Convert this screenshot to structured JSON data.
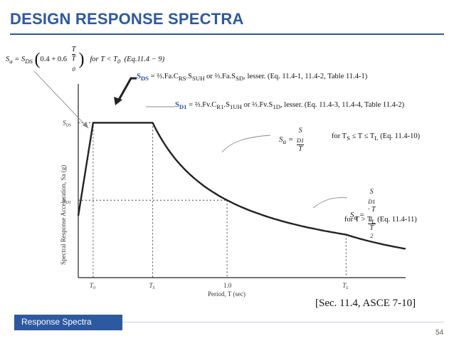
{
  "slide": {
    "title": "DESIGN RESPONSE SPECTRA",
    "footer_label": "Response Spectra",
    "page_number": "54",
    "citation": "[Sec. 11.4, ASCE 7-10]",
    "accent_color": "#2d59a0"
  },
  "equations": {
    "ramp": {
      "lhs": "S",
      "lhs_sub": "a",
      "eq_sign": " = S",
      "eq_sub": "DS",
      "inner_pre": "0.4 + 0.6",
      "frac_num": "T",
      "frac_den": "T",
      "frac_den_sub": "0",
      "condition": "for  T < T",
      "condition_sub": "0",
      "ref": "(Eq.11.4 − 9)"
    },
    "sds": {
      "label": "S",
      "label_sub": "DS",
      "text": " = ⅔.Fa.C",
      "t_sub1": "RS",
      "t2": ".S",
      "t_sub2": "SUH",
      "t3": " or ⅔.Fa.S",
      "t_sub3": "SD",
      "t4": ", lesser. (Eq. 11.4-1, 11.4-2, Table 11.4-1)"
    },
    "sd1": {
      "label": "S",
      "label_sub": "D1",
      "text": " = ⅔.Fv.C",
      "t_sub1": "R1",
      "t2": ".S",
      "t_sub2": "1UH",
      "t3": " or ⅔.Fv.S",
      "t_sub3": "1D",
      "t4": ", lesser. (Eq. 11.4-3, 11.4-4, Table 11.4-2)"
    },
    "descending": {
      "lhs": "S",
      "lhs_sub": "a",
      "num": "S",
      "num_sub": "D1",
      "den": "T",
      "condition_pre": "for T",
      "condition_sub1": "S",
      "condition_mid": " ≤ T ≤ T",
      "condition_sub2": "L",
      "ref": "(Eq. 11.4-10)"
    },
    "long_period": {
      "lhs": "S",
      "lhs_sub": "a",
      "num": "S",
      "num_sub": "D1",
      "num_mid": " · T",
      "num_sub2": "L",
      "den": "T",
      "den_sup": "2",
      "condition_pre": "for T > T",
      "condition_sub": "L",
      "ref": "(Eq. 11.4-11)"
    }
  },
  "chart_data": {
    "type": "line",
    "title": "",
    "xlabel": "Period, T (sec)",
    "ylabel": "Spectral Response Acceleration, Sa (g)",
    "x_ticks": [
      {
        "label": "T",
        "sub": "0"
      },
      {
        "label": "T",
        "sub": "S"
      },
      {
        "label": "1.0",
        "sub": ""
      },
      {
        "label": "T",
        "sub": "L"
      }
    ],
    "y_ticks": [
      {
        "label": "S",
        "sub": "DS"
      },
      {
        "label": "S",
        "sub": "D1"
      }
    ],
    "curve_description_points": {
      "T0": 0.1,
      "TS": 0.5,
      "T1": 1.0,
      "TL": 1.8,
      "Tmax": 2.2,
      "SDS": 1.0,
      "SD1": 0.5,
      "Sa_at_0": 0.4
    },
    "grid": false
  }
}
